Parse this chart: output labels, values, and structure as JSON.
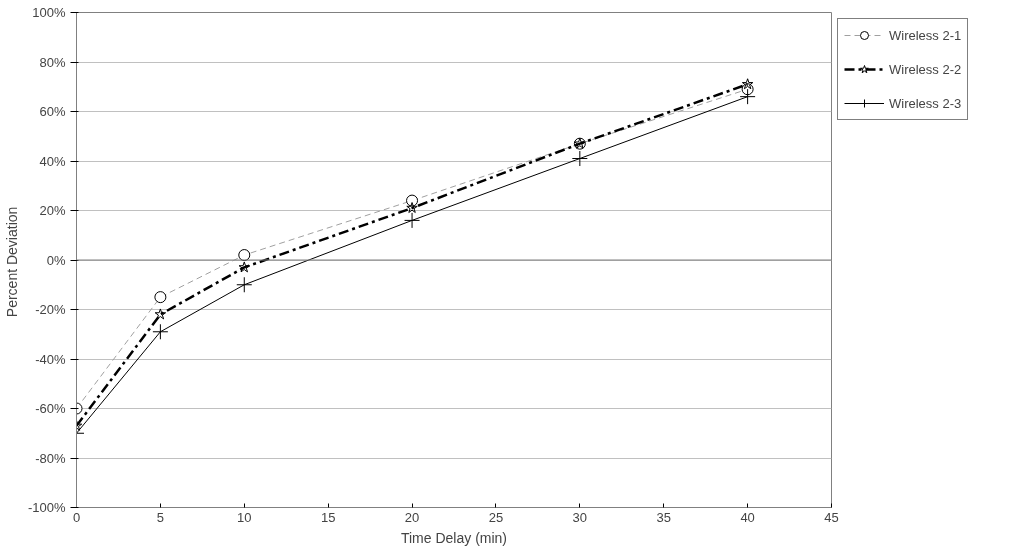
{
  "chart_data": {
    "type": "line",
    "xlabel": "Time Delay (min)",
    "ylabel": "Percent  Deviation",
    "x": [
      0,
      5,
      10,
      20,
      30,
      40
    ],
    "series": [
      {
        "name": "Wireless 2-1",
        "color": "#a0a0a0",
        "line_style": "dashed",
        "marker": "circle",
        "values": [
          -60,
          -15,
          2,
          24,
          47,
          69
        ]
      },
      {
        "name": "Wireless 2-2",
        "color": "#000000",
        "line_style": "dashdot",
        "marker": "star",
        "values": [
          -67,
          -22,
          -3,
          21,
          47,
          71
        ]
      },
      {
        "name": "Wireless 2-3",
        "color": "#000000",
        "line_style": "solid",
        "marker": "cross",
        "values": [
          -70,
          -29,
          -10,
          16,
          41,
          66
        ]
      }
    ],
    "xlim": [
      0,
      45
    ],
    "xticks": [
      0,
      5,
      10,
      15,
      20,
      25,
      30,
      35,
      40,
      45
    ],
    "ylim": [
      -100,
      100
    ],
    "yticks": [
      {
        "value": -100,
        "label": "-100%"
      },
      {
        "value": -80,
        "label": "-80%"
      },
      {
        "value": -60,
        "label": "-60%"
      },
      {
        "value": -40,
        "label": "-40%"
      },
      {
        "value": -20,
        "label": "-20%"
      },
      {
        "value": 0,
        "label": "0%"
      },
      {
        "value": 20,
        "label": "20%"
      },
      {
        "value": 40,
        "label": "40%"
      },
      {
        "value": 60,
        "label": "60%"
      },
      {
        "value": 80,
        "label": "80%"
      },
      {
        "value": 100,
        "label": "100%"
      }
    ],
    "grid": "y",
    "legend": "right"
  }
}
